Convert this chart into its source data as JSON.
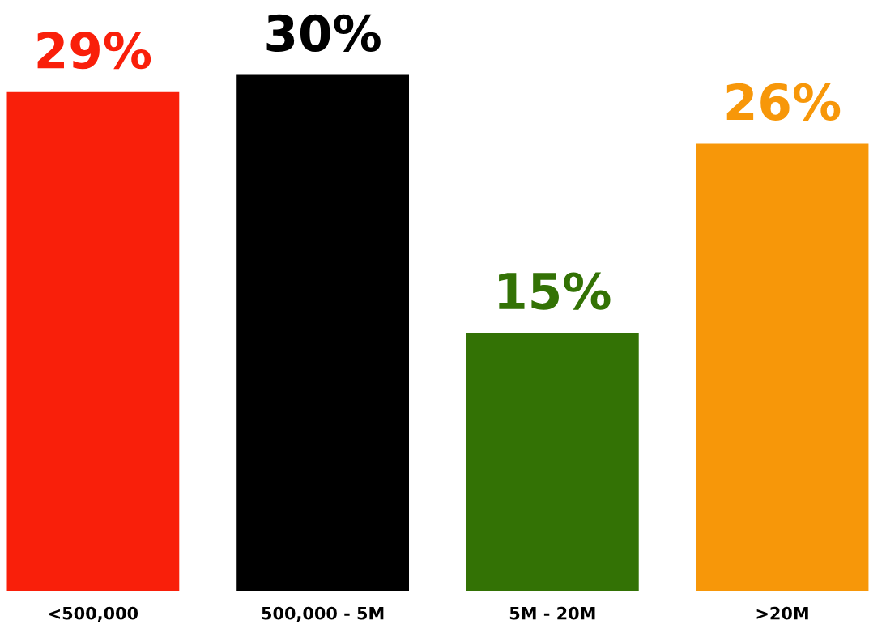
{
  "chart_data": {
    "type": "bar",
    "categories": [
      "<500,000",
      "500,000 - 5M",
      "5M - 20M",
      ">20M"
    ],
    "values": [
      29,
      30,
      15,
      26
    ],
    "colors": [
      "#f91f0a",
      "#000000",
      "#337205",
      "#f79709"
    ],
    "value_labels": [
      "29%",
      "30%",
      "15%",
      "26%"
    ],
    "grid": false,
    "legend": false
  }
}
